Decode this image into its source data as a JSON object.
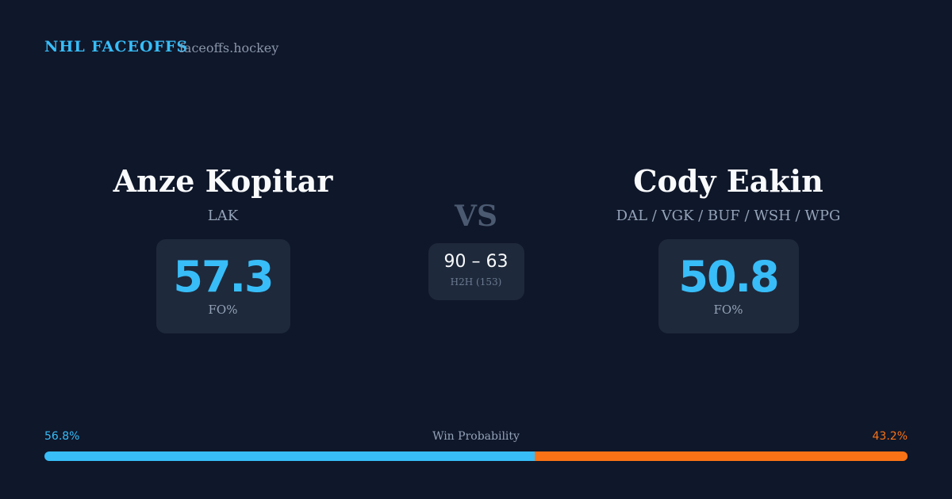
{
  "header": {
    "title": "NHL FACEOFFS",
    "site": "faceoffs.hockey"
  },
  "players": [
    {
      "name": "Anze Kopitar",
      "teams": "LAK",
      "fo_pct": 57.3,
      "fo_label": "FO%"
    },
    {
      "name": "Cody Eakin",
      "teams": "DAL / VGK / BUF / WSH / WPG",
      "fo_pct": 50.8,
      "fo_label": "FO%"
    }
  ],
  "versus": "VS",
  "h2h": {
    "score": "90 – 63",
    "label": "H2H (153)"
  },
  "win_probability": {
    "title": "Win Probability",
    "left": {
      "value": 56.8,
      "label": "56.8%",
      "color": "#38bdf8"
    },
    "right": {
      "value": 43.2,
      "label": "43.2%",
      "color": "#f97316"
    }
  }
}
